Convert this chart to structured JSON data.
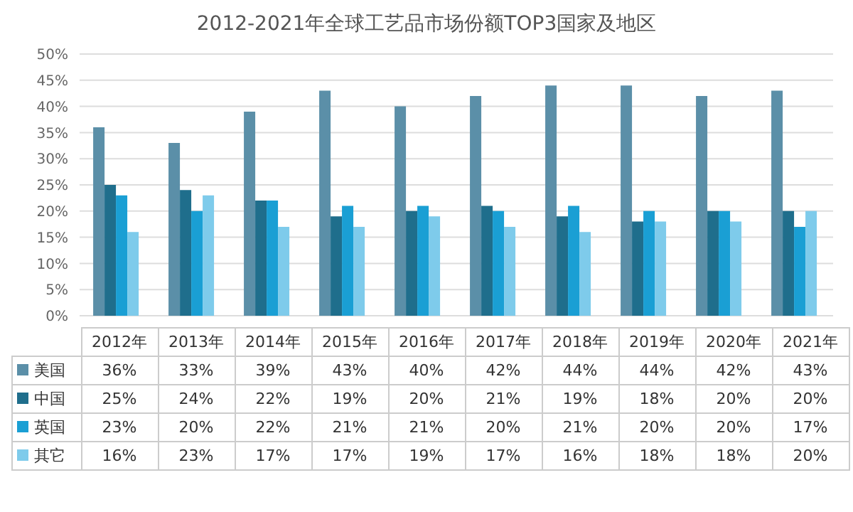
{
  "chart_data": {
    "type": "bar",
    "title": "2012-2021年全球工艺品市场份额TOP3国家及地区",
    "categories": [
      "2012年",
      "2013年",
      "2014年",
      "2015年",
      "2016年",
      "2017年",
      "2018年",
      "2019年",
      "2020年",
      "2021年"
    ],
    "series": [
      {
        "name": "美国",
        "color": "#5b8fa8",
        "values": [
          36,
          33,
          39,
          43,
          40,
          42,
          44,
          44,
          42,
          43
        ],
        "value_labels": [
          "36%",
          "33%",
          "39%",
          "43%",
          "40%",
          "42%",
          "44%",
          "44%",
          "42%",
          "43%"
        ]
      },
      {
        "name": "中国",
        "color": "#1f6e8c",
        "values": [
          25,
          24,
          22,
          19,
          20,
          21,
          19,
          18,
          20,
          20
        ],
        "value_labels": [
          "25%",
          "24%",
          "22%",
          "19%",
          "20%",
          "21%",
          "19%",
          "18%",
          "20%",
          "20%"
        ]
      },
      {
        "name": "英国",
        "color": "#1a9fd4",
        "values": [
          23,
          20,
          22,
          21,
          21,
          20,
          21,
          20,
          20,
          17
        ],
        "value_labels": [
          "23%",
          "20%",
          "22%",
          "21%",
          "21%",
          "20%",
          "21%",
          "20%",
          "20%",
          "17%"
        ]
      },
      {
        "name": "其它",
        "color": "#7ecbeb",
        "values": [
          16,
          23,
          17,
          17,
          19,
          17,
          16,
          18,
          18,
          20
        ],
        "value_labels": [
          "16%",
          "23%",
          "17%",
          "17%",
          "19%",
          "17%",
          "16%",
          "18%",
          "18%",
          "20%"
        ]
      }
    ],
    "ylim": [
      0,
      50
    ],
    "yticks": [
      {
        "value": 0,
        "label": "0%"
      },
      {
        "value": 5,
        "label": "5%"
      },
      {
        "value": 10,
        "label": "10%"
      },
      {
        "value": 15,
        "label": "15%"
      },
      {
        "value": 20,
        "label": "20%"
      },
      {
        "value": 25,
        "label": "25%"
      },
      {
        "value": 30,
        "label": "30%"
      },
      {
        "value": 35,
        "label": "35%"
      },
      {
        "value": 40,
        "label": "40%"
      },
      {
        "value": 45,
        "label": "45%"
      },
      {
        "value": 50,
        "label": "50%"
      }
    ],
    "grid": "y",
    "legend": "bottom"
  }
}
